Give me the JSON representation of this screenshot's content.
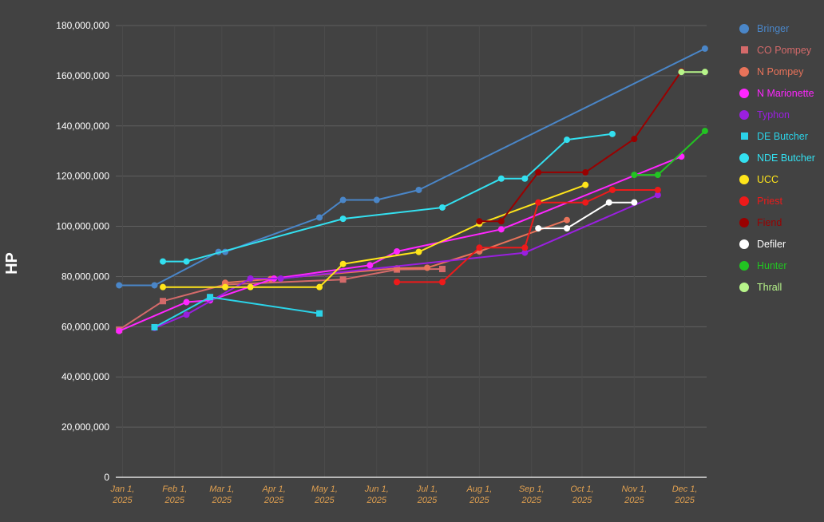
{
  "chart_data": {
    "type": "line",
    "ylabel": "HP",
    "ylim": [
      0,
      180000000
    ],
    "y_ticks": [
      {
        "value": 0,
        "label": "0"
      },
      {
        "value": 20000000,
        "label": "20,000,000"
      },
      {
        "value": 40000000,
        "label": "40,000,000"
      },
      {
        "value": 60000000,
        "label": "60,000,000"
      },
      {
        "value": 80000000,
        "label": "80,000,000"
      },
      {
        "value": 100000000,
        "label": "100,000,000"
      },
      {
        "value": 120000000,
        "label": "120,000,000"
      },
      {
        "value": 140000000,
        "label": "140,000,000"
      },
      {
        "value": 160000000,
        "label": "160,000,000"
      },
      {
        "value": 180000000,
        "label": "180,000,000"
      }
    ],
    "xlim": [
      "2024-12-28",
      "2025-12-14"
    ],
    "x_ticks": [
      {
        "date": "2025-01-01",
        "line1": "Jan 1,",
        "line2": "2025"
      },
      {
        "date": "2025-02-01",
        "line1": "Feb 1,",
        "line2": "2025"
      },
      {
        "date": "2025-03-01",
        "line1": "Mar 1,",
        "line2": "2025"
      },
      {
        "date": "2025-04-01",
        "line1": "Apr 1,",
        "line2": "2025"
      },
      {
        "date": "2025-05-01",
        "line1": "May 1,",
        "line2": "2025"
      },
      {
        "date": "2025-06-01",
        "line1": "Jun 1,",
        "line2": "2025"
      },
      {
        "date": "2025-07-01",
        "line1": "Jul 1,",
        "line2": "2025"
      },
      {
        "date": "2025-08-01",
        "line1": "Aug 1,",
        "line2": "2025"
      },
      {
        "date": "2025-09-01",
        "line1": "Sep 1,",
        "line2": "2025"
      },
      {
        "date": "2025-10-01",
        "line1": "Oct 1,",
        "line2": "2025"
      },
      {
        "date": "2025-11-01",
        "line1": "Nov 1,",
        "line2": "2025"
      },
      {
        "date": "2025-12-01",
        "line1": "Dec 1,",
        "line2": "2025"
      }
    ],
    "grid": true,
    "legend_position": "right",
    "series": [
      {
        "name": "Bringer",
        "color": "#4a86c8",
        "marker": "circle",
        "points": [
          [
            "2024-12-30",
            76500000
          ],
          [
            "2025-01-20",
            76500000
          ],
          [
            "2025-02-27",
            89800000
          ],
          [
            "2025-03-03",
            89800000
          ],
          [
            "2025-04-28",
            103500000
          ],
          [
            "2025-05-12",
            110500000
          ],
          [
            "2025-06-01",
            110500000
          ],
          [
            "2025-06-26",
            114500000
          ],
          [
            "2025-12-13",
            170800000
          ]
        ]
      },
      {
        "name": "CO Pompey",
        "color": "#d46a6a",
        "marker": "square",
        "points": [
          [
            "2024-12-30",
            58800000
          ],
          [
            "2025-01-25",
            70200000
          ],
          [
            "2025-03-03",
            76800000
          ],
          [
            "2025-05-12",
            78800000
          ],
          [
            "2025-06-13",
            82800000
          ],
          [
            "2025-07-10",
            83000000
          ]
        ]
      },
      {
        "name": "N Pompey",
        "color": "#e8735a",
        "marker": "circle",
        "points": [
          [
            "2025-03-03",
            77500000
          ],
          [
            "2025-03-30",
            79000000
          ],
          [
            "2025-06-13",
            83300000
          ],
          [
            "2025-07-01",
            83500000
          ],
          [
            "2025-08-01",
            90000000
          ],
          [
            "2025-09-22",
            102500000
          ]
        ]
      },
      {
        "name": "N Marionette",
        "color": "#ff26ff",
        "marker": "circle",
        "points": [
          [
            "2024-12-30",
            58300000
          ],
          [
            "2025-02-08",
            69800000
          ],
          [
            "2025-02-22",
            70500000
          ],
          [
            "2025-04-01",
            79200000
          ],
          [
            "2025-05-28",
            84500000
          ],
          [
            "2025-06-13",
            90000000
          ],
          [
            "2025-08-14",
            98800000
          ],
          [
            "2025-11-29",
            127800000
          ]
        ]
      },
      {
        "name": "Typhon",
        "color": "#9a1fe0",
        "marker": "circle",
        "points": [
          [
            "2025-01-20",
            59500000
          ],
          [
            "2025-02-08",
            64800000
          ],
          [
            "2025-03-18",
            79200000
          ],
          [
            "2025-04-05",
            79200000
          ],
          [
            "2025-08-28",
            89500000
          ],
          [
            "2025-11-15",
            112500000
          ]
        ]
      },
      {
        "name": "DE Butcher",
        "color": "#2bd3e8",
        "marker": "square",
        "points": [
          [
            "2025-01-20",
            59800000
          ],
          [
            "2025-02-22",
            71800000
          ],
          [
            "2025-04-28",
            65300000
          ]
        ]
      },
      {
        "name": "NDE Butcher",
        "color": "#33e0f0",
        "marker": "circle",
        "points": [
          [
            "2025-01-25",
            86000000
          ],
          [
            "2025-02-08",
            86000000
          ],
          [
            "2025-05-12",
            103000000
          ],
          [
            "2025-07-10",
            107500000
          ],
          [
            "2025-08-14",
            119000000
          ],
          [
            "2025-08-28",
            119000000
          ],
          [
            "2025-09-22",
            134500000
          ],
          [
            "2025-10-19",
            136800000
          ]
        ]
      },
      {
        "name": "UCC",
        "color": "#ffe51a",
        "marker": "circle",
        "points": [
          [
            "2025-01-25",
            75800000
          ],
          [
            "2025-03-03",
            75800000
          ],
          [
            "2025-03-18",
            75800000
          ],
          [
            "2025-04-28",
            75800000
          ],
          [
            "2025-05-12",
            85000000
          ],
          [
            "2025-06-26",
            89800000
          ],
          [
            "2025-08-01",
            101000000
          ],
          [
            "2025-10-03",
            116500000
          ]
        ]
      },
      {
        "name": "Priest",
        "color": "#ee1a1a",
        "marker": "circle",
        "points": [
          [
            "2025-06-13",
            77800000
          ],
          [
            "2025-07-10",
            77800000
          ],
          [
            "2025-08-01",
            91500000
          ],
          [
            "2025-08-28",
            91500000
          ],
          [
            "2025-09-05",
            109500000
          ],
          [
            "2025-10-03",
            109500000
          ],
          [
            "2025-10-19",
            114500000
          ],
          [
            "2025-11-15",
            114500000
          ]
        ]
      },
      {
        "name": "Fiend",
        "color": "#990000",
        "marker": "circle",
        "points": [
          [
            "2025-08-01",
            102000000
          ],
          [
            "2025-08-14",
            102000000
          ],
          [
            "2025-09-05",
            121500000
          ],
          [
            "2025-10-03",
            121500000
          ],
          [
            "2025-11-01",
            134800000
          ],
          [
            "2025-11-29",
            161800000
          ]
        ]
      },
      {
        "name": "Defiler",
        "color": "#ffffff",
        "marker": "circle",
        "points": [
          [
            "2025-09-05",
            99200000
          ],
          [
            "2025-09-22",
            99200000
          ],
          [
            "2025-10-17",
            109500000
          ],
          [
            "2025-11-01",
            109500000
          ]
        ]
      },
      {
        "name": "Hunter",
        "color": "#22c422",
        "marker": "circle",
        "points": [
          [
            "2025-11-01",
            120500000
          ],
          [
            "2025-11-15",
            120500000
          ],
          [
            "2025-12-13",
            138000000
          ]
        ]
      },
      {
        "name": "Thrall",
        "color": "#b7f58a",
        "marker": "circle",
        "points": [
          [
            "2025-11-29",
            161500000
          ],
          [
            "2025-12-13",
            161500000
          ]
        ]
      }
    ]
  }
}
